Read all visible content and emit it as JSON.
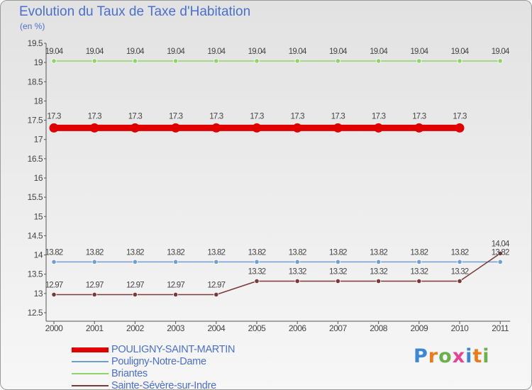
{
  "title": "Evolution du Taux de Taxe d'Habitation",
  "unit": "(en %)",
  "brand": {
    "text": "Proxiti",
    "colors": [
      "#3a86d8",
      "#f07a1a",
      "#6ab04c",
      "#e84393",
      "#3a86d8",
      "#f07a1a",
      "#6ab04c"
    ]
  },
  "chart_data": {
    "type": "line",
    "categories": [
      "2000",
      "2001",
      "2002",
      "2003",
      "2004",
      "2005",
      "2006",
      "2007",
      "2008",
      "2009",
      "2010",
      "2011"
    ],
    "ylim": [
      12.5,
      19.5
    ],
    "yticks": [
      "12.5",
      "13",
      "13.5",
      "14",
      "14.5",
      "15",
      "15.5",
      "16",
      "16.5",
      "17",
      "17.5",
      "18",
      "18.5",
      "19",
      "19.5"
    ],
    "grid": false,
    "legend": "bottom-left",
    "series": [
      {
        "name": "POULIGNY-SAINT-MARTIN",
        "color": "#e00000",
        "values": [
          17.3,
          17.3,
          17.3,
          17.3,
          17.3,
          17.3,
          17.3,
          17.3,
          17.3,
          17.3,
          17.3,
          null
        ],
        "labels": [
          "17.3",
          "17.3",
          "17.3",
          "17.3",
          "17.3",
          "17.3",
          "17.3",
          "17.3",
          "17.3",
          "17.3",
          "17.3",
          ""
        ]
      },
      {
        "name": "Pouligny-Notre-Dame",
        "color": "#6f9fd0",
        "values": [
          13.82,
          13.82,
          13.82,
          13.82,
          13.82,
          13.82,
          13.82,
          13.82,
          13.82,
          13.82,
          13.82,
          13.82
        ],
        "labels": [
          "13.82",
          "13.82",
          "13.82",
          "13.82",
          "13.82",
          "13.82",
          "13.82",
          "13.82",
          "13.82",
          "13.82",
          "13.82",
          "13.82"
        ]
      },
      {
        "name": "Briantes",
        "color": "#8fd46a",
        "values": [
          19.04,
          19.04,
          19.04,
          19.04,
          19.04,
          19.04,
          19.04,
          19.04,
          19.04,
          19.04,
          19.04,
          19.04
        ],
        "labels": [
          "19.04",
          "19.04",
          "19.04",
          "19.04",
          "19.04",
          "19.04",
          "19.04",
          "19.04",
          "19.04",
          "19.04",
          "19.04",
          "19.04"
        ]
      },
      {
        "name": "Sainte-Sévère-sur-Indre",
        "color": "#7a3a3a",
        "values": [
          12.97,
          12.97,
          12.97,
          12.97,
          12.97,
          13.32,
          13.32,
          13.32,
          13.32,
          13.32,
          13.32,
          14.04
        ],
        "labels": [
          "12.97",
          "12.97",
          "12.97",
          "12.97",
          "12.97",
          "13.32",
          "13.32",
          "13.32",
          "13.32",
          "13.32",
          "13.32",
          "14.04"
        ]
      }
    ]
  }
}
